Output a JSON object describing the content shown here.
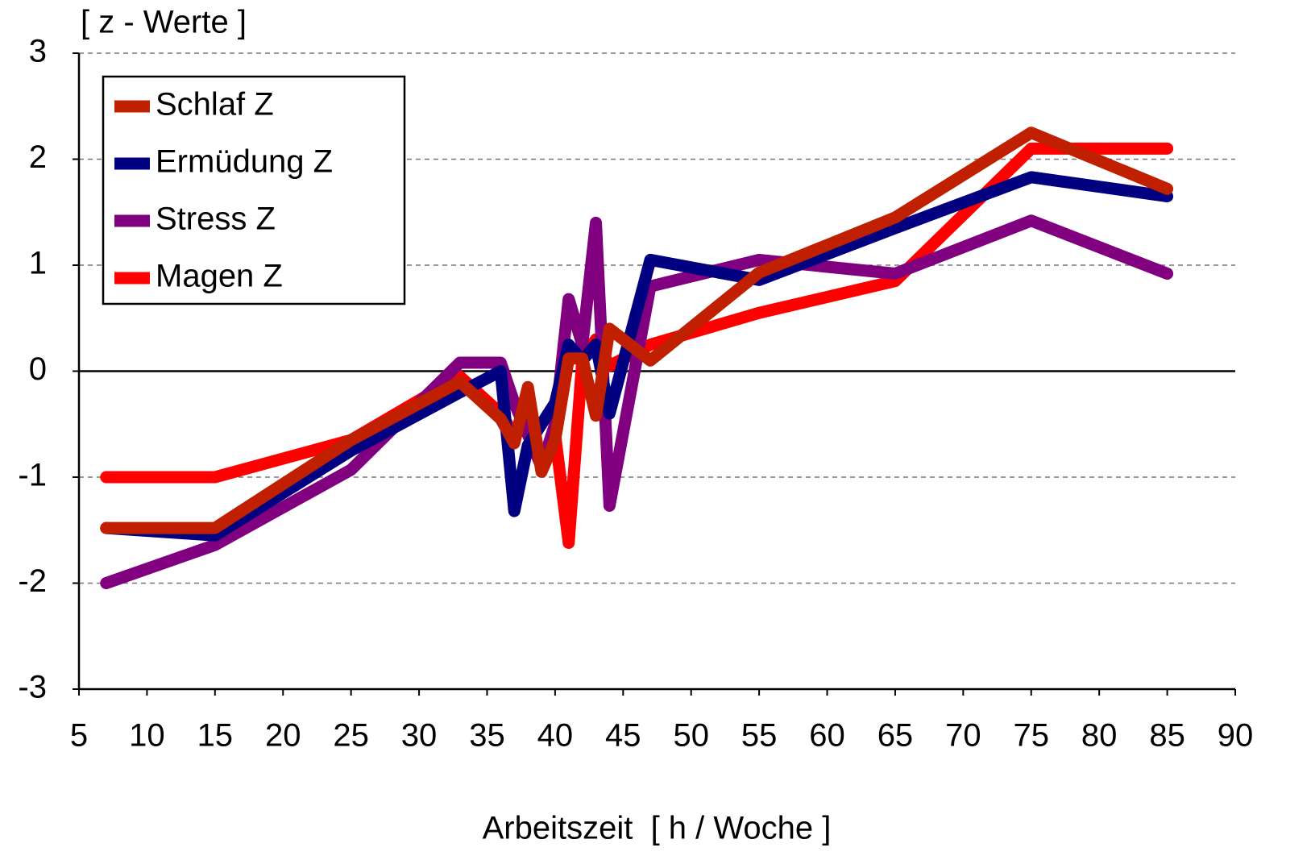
{
  "chart_data": {
    "type": "line",
    "y_label": "[ z - Werte ]",
    "x_label": "Arbeitszeit  [ h / Woche ]",
    "x": [
      7,
      15,
      25,
      33,
      36,
      37,
      38,
      39,
      40,
      41,
      42,
      43,
      44,
      47,
      55,
      65,
      75,
      85
    ],
    "series": [
      {
        "name": "Schlaf Z",
        "color": "#c02000",
        "values": [
          -1.48,
          -1.48,
          -0.65,
          -0.1,
          -0.45,
          -0.68,
          -0.15,
          -0.95,
          -0.65,
          0.12,
          0.12,
          -0.42,
          0.4,
          0.1,
          0.93,
          1.45,
          2.25,
          1.72
        ]
      },
      {
        "name": "Ermüdung Z",
        "color": "#000080",
        "values": [
          -1.48,
          -1.55,
          -0.75,
          -0.2,
          0.0,
          -1.32,
          -0.7,
          -0.5,
          -0.3,
          0.25,
          0.1,
          0.25,
          -0.4,
          1.05,
          0.86,
          1.35,
          1.83,
          1.65
        ]
      },
      {
        "name": "Stress Z",
        "color": "#800080",
        "values": [
          -2.0,
          -1.64,
          -0.93,
          0.08,
          0.08,
          -0.3,
          -0.6,
          -0.9,
          -0.5,
          0.68,
          0.25,
          1.4,
          -1.27,
          0.8,
          1.05,
          0.92,
          1.42,
          0.92
        ]
      },
      {
        "name": "Magen Z",
        "color": "#ff0000",
        "values": [
          -1.0,
          -1.0,
          -0.65,
          -0.05,
          -0.4,
          -0.6,
          -0.3,
          -0.9,
          -0.6,
          -1.62,
          0.1,
          0.3,
          0.05,
          0.25,
          0.55,
          0.85,
          2.1,
          2.1
        ]
      }
    ],
    "xlim": [
      5,
      90
    ],
    "xticks": [
      5,
      10,
      15,
      20,
      25,
      30,
      35,
      40,
      45,
      50,
      55,
      60,
      65,
      70,
      75,
      80,
      85,
      90
    ],
    "ylim": [
      -3,
      3
    ],
    "yticks": [
      -3,
      -2,
      -1,
      0,
      1,
      2,
      3
    ],
    "grid": true,
    "legend": "upper left"
  }
}
